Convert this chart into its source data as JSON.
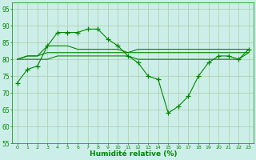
{
  "bg_color": "#cceee8",
  "grid_color": "#aaccaa",
  "line_color": "#008800",
  "xlabel": "Humidité relative (%)",
  "xlabel_color": "#008800",
  "tick_color": "#008800",
  "spine_color": "#008800",
  "ylim": [
    55,
    97
  ],
  "xlim": [
    -0.5,
    23.5
  ],
  "yticks": [
    55,
    60,
    65,
    70,
    75,
    80,
    85,
    90,
    95
  ],
  "xticks": [
    0,
    1,
    2,
    3,
    4,
    5,
    6,
    7,
    8,
    9,
    10,
    11,
    12,
    13,
    14,
    15,
    16,
    17,
    18,
    19,
    20,
    21,
    22,
    23
  ],
  "xtick_labels": [
    "0",
    "1",
    "2",
    "3",
    "4",
    "5",
    "6",
    "7",
    "8",
    "9",
    "10",
    "11",
    "12",
    "13",
    "14",
    "15",
    "16",
    "17",
    "18",
    "19",
    "20",
    "21",
    "22",
    "23"
  ],
  "series1_x": [
    0,
    1,
    2,
    3,
    4,
    5,
    6,
    7,
    8,
    9,
    10,
    11,
    12,
    13,
    14,
    15,
    16,
    17,
    18,
    19,
    20,
    21,
    22,
    23
  ],
  "series1_y": [
    73,
    77,
    78,
    84,
    88,
    88,
    88,
    89,
    89,
    86,
    84,
    81,
    79,
    75,
    74,
    64,
    66,
    69,
    75,
    79,
    81,
    81,
    80,
    83
  ],
  "series2_x": [
    0,
    1,
    2,
    3,
    4,
    5,
    6,
    7,
    8,
    9,
    10,
    11,
    12,
    13,
    14,
    15,
    16,
    17,
    18,
    19,
    20,
    21,
    22,
    23
  ],
  "series2_y": [
    80,
    81,
    81,
    84,
    84,
    84,
    83,
    83,
    83,
    83,
    83,
    82,
    83,
    83,
    83,
    83,
    83,
    83,
    83,
    83,
    83,
    83,
    83,
    83
  ],
  "series3_x": [
    0,
    1,
    2,
    3,
    4,
    5,
    6,
    7,
    8,
    9,
    10,
    11,
    12,
    13,
    14,
    15,
    16,
    17,
    18,
    19,
    20,
    21,
    22,
    23
  ],
  "series3_y": [
    80,
    81,
    81,
    82,
    82,
    82,
    82,
    82,
    82,
    82,
    82,
    82,
    82,
    82,
    82,
    82,
    82,
    82,
    82,
    82,
    82,
    82,
    82,
    82
  ],
  "series4_x": [
    0,
    1,
    2,
    3,
    4,
    5,
    6,
    7,
    8,
    9,
    10,
    11,
    12,
    13,
    14,
    15,
    16,
    17,
    18,
    19,
    20,
    21,
    22,
    23
  ],
  "series4_y": [
    80,
    80,
    80,
    80,
    81,
    81,
    81,
    81,
    81,
    81,
    81,
    81,
    80,
    80,
    80,
    80,
    80,
    80,
    80,
    80,
    80,
    80,
    80,
    82
  ]
}
